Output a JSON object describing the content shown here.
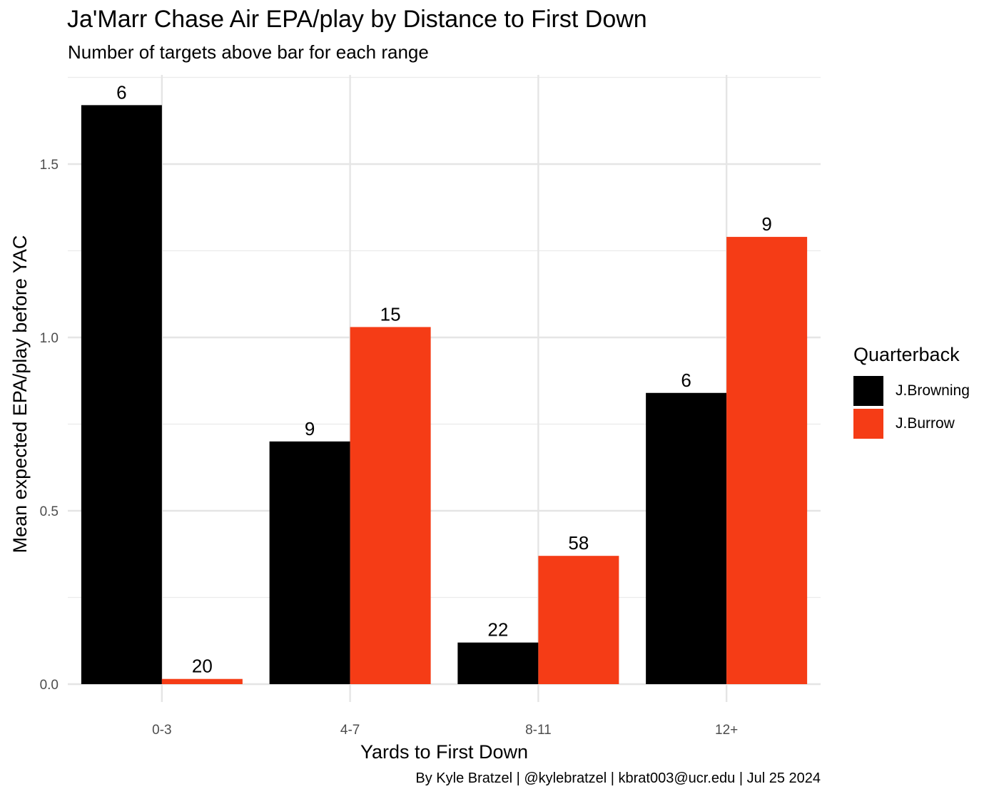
{
  "title": "Ja'Marr Chase Air EPA/play by Distance to First Down",
  "subtitle": "Number of targets above bar for each range",
  "caption": "By Kyle Bratzel | @kylebratzel | kbrat003@ucr.edu | Jul 25 2024",
  "legend": {
    "title": "Quarterback",
    "placement": "right",
    "items": [
      {
        "label": "J.Browning",
        "color": "#000000"
      },
      {
        "label": "J.Burrow",
        "color": "#F53C16"
      }
    ]
  },
  "chart_data": {
    "type": "bar",
    "title": "Ja'Marr Chase Air EPA/play by Distance to First Down",
    "subtitle": "Number of targets above bar for each range",
    "xlabel": "Yards to First Down",
    "ylabel": "Mean expected EPA/play before YAC",
    "categories": [
      "0-3",
      "4-7",
      "8-11",
      "12+"
    ],
    "series": [
      {
        "name": "J.Browning",
        "color": "#000000",
        "values": [
          1.67,
          0.7,
          0.12,
          0.84
        ],
        "labels": [
          "6",
          "9",
          "22",
          "6"
        ]
      },
      {
        "name": "J.Burrow",
        "color": "#F53C16",
        "values": [
          0.015,
          1.03,
          0.37,
          1.29
        ],
        "labels": [
          "20",
          "15",
          "58",
          "9"
        ]
      }
    ],
    "ylim": [
      0,
      1.76
    ],
    "yticks": [
      0.0,
      0.5,
      1.0,
      1.5
    ],
    "ytick_labels": [
      "0.0",
      "0.5",
      "1.0",
      "1.5"
    ],
    "grid": true
  }
}
